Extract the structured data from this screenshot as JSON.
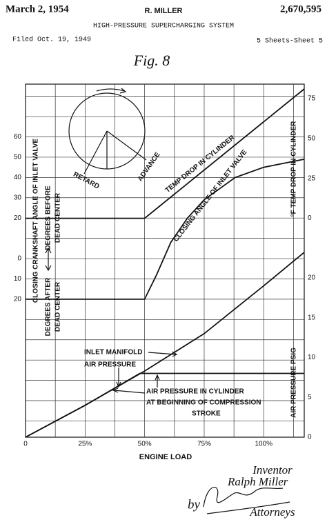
{
  "header": {
    "date": "March 2, 1954",
    "inventor": "R. MILLER",
    "patent_number": "2,670,595",
    "title": "HIGH-PRESSURE SUPERCHARGING SYSTEM",
    "filed": "Filed Oct. 19, 1949",
    "sheets": "5 Sheets-Sheet 5"
  },
  "chart_data": {
    "type": "line",
    "title": "Fig. 8",
    "x_label": "ENGINE LOAD",
    "y_label": "CLOSING CRANKSHAFT ANGLE OF INLET VALVE",
    "y_sublabels": [
      "DEGREES BEFORE",
      "DEAD CENTER",
      "DEGREES AFTER",
      "DEAD CENTER"
    ],
    "y2_label": "°F TEMP DROP IN CYLINDER",
    "y3_label": "AIR PRESSURE PSIG",
    "xlim": [
      0,
      117
    ],
    "xticks": [
      0,
      {
        "value": 25,
        "label": "25%"
      },
      {
        "value": 50,
        "label": "50%"
      },
      {
        "value": 75,
        "label": "75%"
      },
      {
        "value": 100,
        "label": "100%"
      }
    ],
    "ylim": [
      -88,
      86
    ],
    "yticks": [
      60,
      50,
      40,
      30,
      20,
      0,
      {
        "value": -10,
        "label": "10"
      },
      {
        "value": -20,
        "label": "20"
      }
    ],
    "y2lim": [
      -137,
      84
    ],
    "y2ticks": [
      75,
      50,
      25,
      0
    ],
    "y3lim": [
      0,
      44.3
    ],
    "y3ticks": [
      20,
      15,
      10,
      5,
      0
    ],
    "grid": true,
    "series": [
      {
        "name": "TEMP DROP IN CYLINDER",
        "color": "#111111",
        "axis": "y2",
        "x": [
          0,
          50,
          117
        ],
        "values": [
          0,
          0,
          81
        ]
      },
      {
        "name": "CLOSING ANGLE OF INLET VALVE",
        "color": "#111111",
        "axis": "y",
        "x": [
          0,
          50,
          55,
          61,
          68,
          75,
          88,
          100,
          117
        ],
        "values": [
          -20,
          -20,
          -8,
          8,
          20,
          29,
          40,
          45,
          49
        ]
      },
      {
        "name": "INLET MANIFOLD AIR PRESSURE",
        "color": "#111111",
        "axis": "y3",
        "x": [
          0,
          25,
          50,
          75,
          100,
          117
        ],
        "values": [
          0,
          4,
          8.3,
          13,
          19,
          23.2
        ]
      },
      {
        "name": "AIR PRESSURE IN CYLINDER AT BEGINNING OF COMPRESSION STROKE",
        "color": "#111111",
        "axis": "y3",
        "x": [
          0,
          25,
          48,
          117
        ],
        "values": [
          0,
          4,
          8,
          8
        ]
      }
    ],
    "annotations": [
      "TEMP DROP IN CYLINDER",
      "CLOSING ANGLE OF INLET VALVE",
      "INLET MANIFOLD",
      "AIR PRESSURE",
      "AIR PRESSURE IN CYLINDER",
      "AT BEGINNING OF COMPRESSION",
      "STROKE",
      "RETARD",
      "ADVANCE"
    ]
  },
  "footer": {
    "inventor_label": "Inventor",
    "inventor_name": "Ralph Miller",
    "by": "by",
    "attorneys": "Attorneys"
  }
}
